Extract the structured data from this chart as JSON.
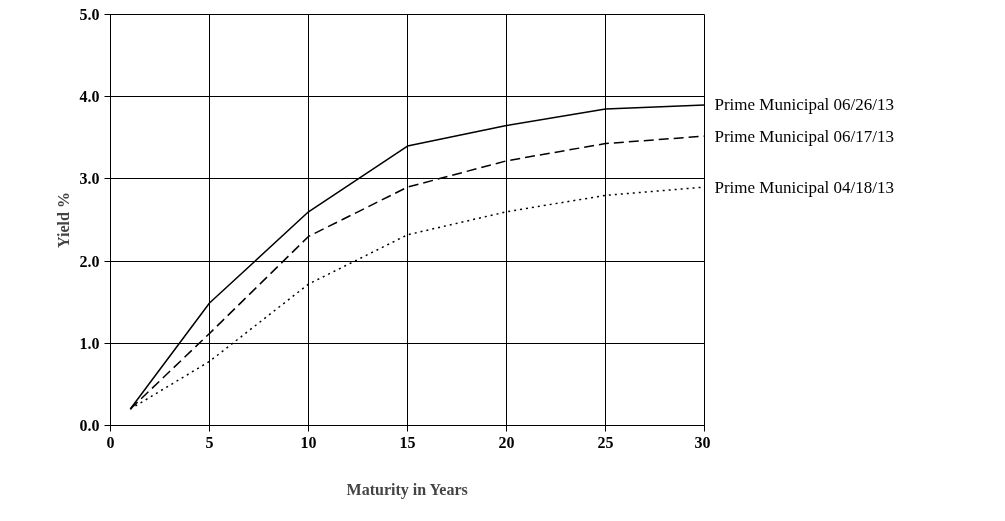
{
  "chart_data": {
    "type": "line",
    "xlabel": "Maturity in Years",
    "ylabel": "Yield %",
    "x": [
      1,
      5,
      10,
      15,
      20,
      25,
      30
    ],
    "series": [
      {
        "name": "Prime Municipal 06/26/13",
        "color": "#000000",
        "line_style": "solid",
        "values": [
          0.2,
          1.49,
          2.6,
          3.4,
          3.65,
          3.85,
          3.9
        ]
      },
      {
        "name": "Prime Municipal 06/17/13",
        "color": "#000000",
        "line_style": "dashed",
        "values": [
          0.2,
          1.12,
          2.3,
          2.9,
          3.22,
          3.43,
          3.52
        ]
      },
      {
        "name": "Prime Municipal 04/18/13",
        "color": "#000000",
        "line_style": "dotted",
        "values": [
          0.2,
          0.78,
          1.72,
          2.32,
          2.6,
          2.8,
          2.9
        ]
      }
    ],
    "xlim": [
      0,
      30
    ],
    "xticks": [
      0,
      5,
      10,
      15,
      20,
      25,
      30
    ],
    "ylim": [
      0,
      5
    ],
    "yticks": [
      {
        "value": 0,
        "label": "0.0"
      },
      {
        "value": 1,
        "label": "1.0"
      },
      {
        "value": 2,
        "label": "2.0"
      },
      {
        "value": 3,
        "label": "3.0"
      },
      {
        "value": 4,
        "label": "4.0"
      },
      {
        "value": 5,
        "label": "5.0"
      }
    ],
    "grid": true,
    "marker": "none"
  }
}
